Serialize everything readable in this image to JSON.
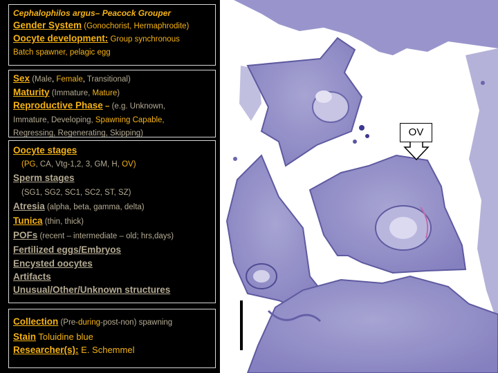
{
  "panel1": {
    "species": "Cephalophilos argus– Peacock Grouper",
    "gender_label": "Gender System",
    "gender_value": " (Gonochorist, Hermaphrodite)",
    "oocyte_dev_label": "Oocyte development:",
    "oocyte_dev_value": " Group synchronous",
    "oocyte_dev_value2": "Batch spawner, pelagic egg"
  },
  "panel2": {
    "sex_label": "Sex",
    "sex_open": " (Male",
    "sex_sep1": ", ",
    "sex_female": "Female",
    "sex_sep2": ", ",
    "sex_trans": "Transitional)",
    "maturity_label": "Maturity",
    "maturity_open": " (Immature, ",
    "maturity_mature": "Mature",
    "maturity_close": ")",
    "phase_label": "Reproductive Phase",
    "phase_dash": " – ",
    "phase_open": "(e.g. Unknown,",
    "phase_line2a": "Immature, Developing, ",
    "phase_spawning": "Spawning Capable,",
    "phase_line3": "Regressing, Regenerating, Skipping)"
  },
  "panel3": {
    "oocyte_stages_label": "Oocyte stages",
    "oocyte_stages_open": "(",
    "oocyte_stages_pg": "PG",
    "oocyte_stages_mid": ", CA, Vtg-1,2, 3, GM, H, ",
    "oocyte_stages_ov": "OV",
    "oocyte_stages_close": ")",
    "sperm_stages_label": "Sperm stages",
    "sperm_stages_values": "(SG1, SG2, SC1, SC2, ST, SZ)",
    "atresia_label": "Atresia",
    "atresia_values": " (alpha, beta, gamma, delta)",
    "tunica_label": "Tunica",
    "tunica_values": " (thin,  thick)",
    "pofs_label": "POFs",
    "pofs_values": " (recent – intermediate – old; hrs,days)",
    "fertilized_label": "Fertilized eggs/Embryos",
    "encysted_label": "Encysted oocytes",
    "artifacts_label": "Artifacts",
    "unusual_label": "Unusual/Other/Unknown structures"
  },
  "panel4": {
    "collection_label": "Collection",
    "collection_open": " (Pre-",
    "collection_during": "during",
    "collection_rest": "-post-non) spawning",
    "stain_label": "Stain",
    "stain_value": " Toluidine blue",
    "researcher_label": "Researcher(s):",
    "researcher_value": " E. Schemmel"
  },
  "micrograph": {
    "annotation_label": "OV",
    "stain_color": "#8a86c4",
    "background_color": "#ffffff"
  }
}
